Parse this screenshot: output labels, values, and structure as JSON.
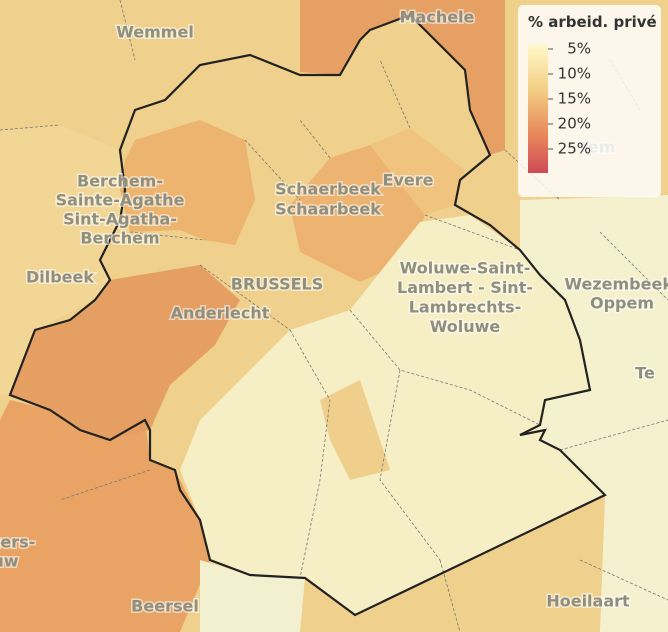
{
  "map": {
    "labels": [
      {
        "lines": [
          "Wemmel"
        ]
      },
      {
        "lines": [
          "Machele"
        ]
      },
      {
        "lines": [
          "Berchem-",
          "Sainte-Agathe",
          "Sint-Agatha-",
          "Berchem"
        ]
      },
      {
        "lines": [
          "Dilbeek"
        ]
      },
      {
        "lines": [
          "Schaerbeek",
          "Schaarbeek"
        ]
      },
      {
        "lines": [
          "Evere"
        ]
      },
      {
        "lines": [
          "BRUSSELS"
        ]
      },
      {
        "lines": [
          "Anderlecht"
        ]
      },
      {
        "lines": [
          "Woluwe-Saint-",
          "Lambert - Sint-",
          "Lambrechts-",
          "Woluwe"
        ]
      },
      {
        "lines": [
          "Wezembeek-",
          "Oppem"
        ]
      },
      {
        "lines": [
          "Te"
        ]
      },
      {
        "lines": [
          "tem"
        ]
      },
      {
        "lines": [
          "Pieters-",
          "euw"
        ]
      },
      {
        "lines": [
          "Beersel"
        ]
      },
      {
        "lines": [
          "Hoeilaart"
        ]
      }
    ]
  },
  "legend": {
    "title": "% arbeid. privé",
    "ticks": [
      "5%",
      "10%",
      "15%",
      "20%",
      "25%"
    ]
  }
}
